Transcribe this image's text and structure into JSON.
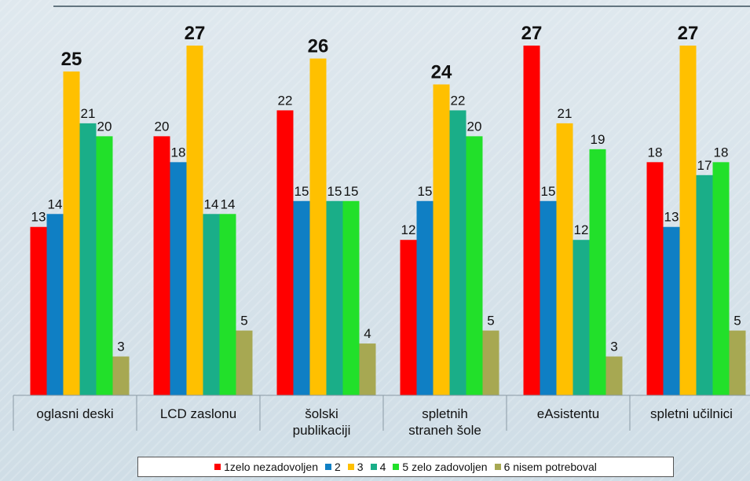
{
  "chart_data": {
    "type": "bar",
    "categories": [
      "oglasni deski",
      "LCD zaslonu",
      "šolski publikaciji",
      "spletnih straneh šole",
      "eAsistentu",
      "spletni učilnici"
    ],
    "series": [
      {
        "name": "1zelo nezadovoljen",
        "color": "#ff0000",
        "values": [
          13,
          20,
          22,
          12,
          27,
          18
        ]
      },
      {
        "name": "2",
        "color": "#0f7fc4",
        "values": [
          14,
          18,
          15,
          15,
          15,
          13
        ]
      },
      {
        "name": "3",
        "color": "#ffc000",
        "values": [
          25,
          27,
          26,
          24,
          21,
          27
        ]
      },
      {
        "name": "4",
        "color": "#1aae88",
        "values": [
          21,
          14,
          15,
          22,
          12,
          17
        ]
      },
      {
        "name": "5 zelo zadovoljen",
        "color": "#22e02a",
        "values": [
          20,
          14,
          15,
          20,
          19,
          18
        ]
      },
      {
        "name": "6 nisem potreboval",
        "color": "#a7a852",
        "values": [
          3,
          5,
          4,
          5,
          3,
          5
        ]
      }
    ],
    "legend": "bottom"
  }
}
